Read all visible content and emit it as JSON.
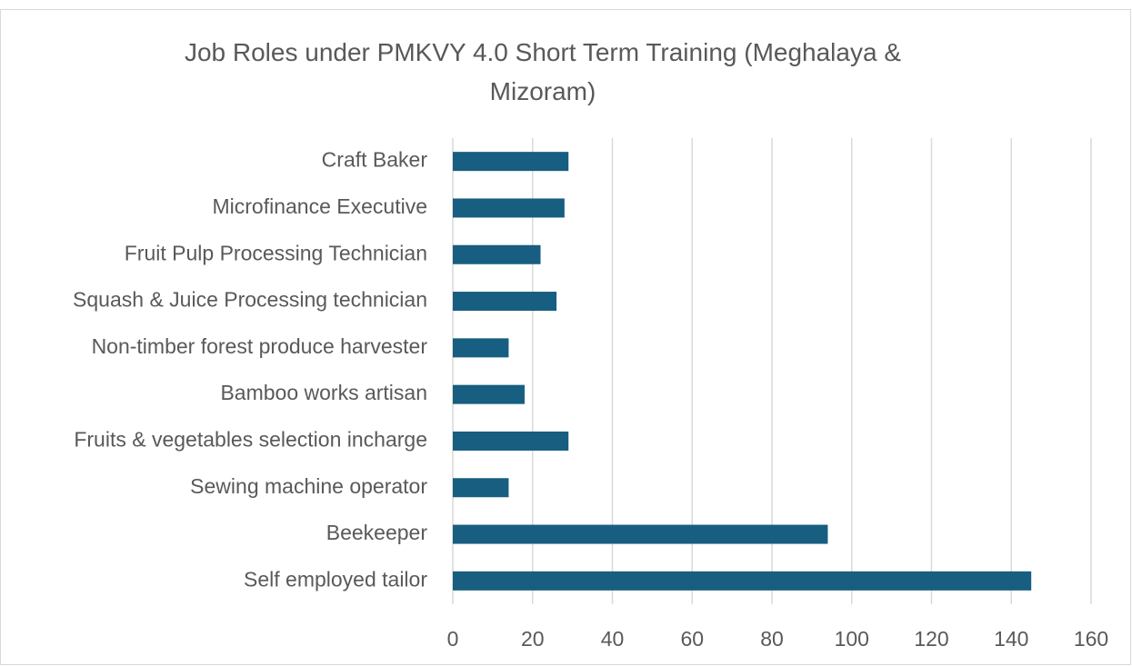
{
  "chart_data": {
    "type": "bar",
    "orientation": "horizontal",
    "title": "Job Roles under PMKVY 4.0 Short Term Training (Meghalaya & Mizoram)",
    "categories": [
      "Craft Baker",
      "Microfinance Executive",
      "Fruit Pulp Processing Technician",
      "Squash & Juice Processing technician",
      "Non-timber forest produce harvester",
      "Bamboo works artisan",
      "Fruits & vegetables selection incharge",
      "Sewing machine operator",
      "Beekeeper",
      "Self employed tailor"
    ],
    "values": [
      29,
      28,
      22,
      26,
      14,
      18,
      29,
      14,
      94,
      145
    ],
    "color": "#175e80",
    "xlim": [
      0,
      160
    ],
    "xticks": [
      0,
      20,
      40,
      60,
      80,
      100,
      120,
      140,
      160
    ],
    "grid": true
  }
}
